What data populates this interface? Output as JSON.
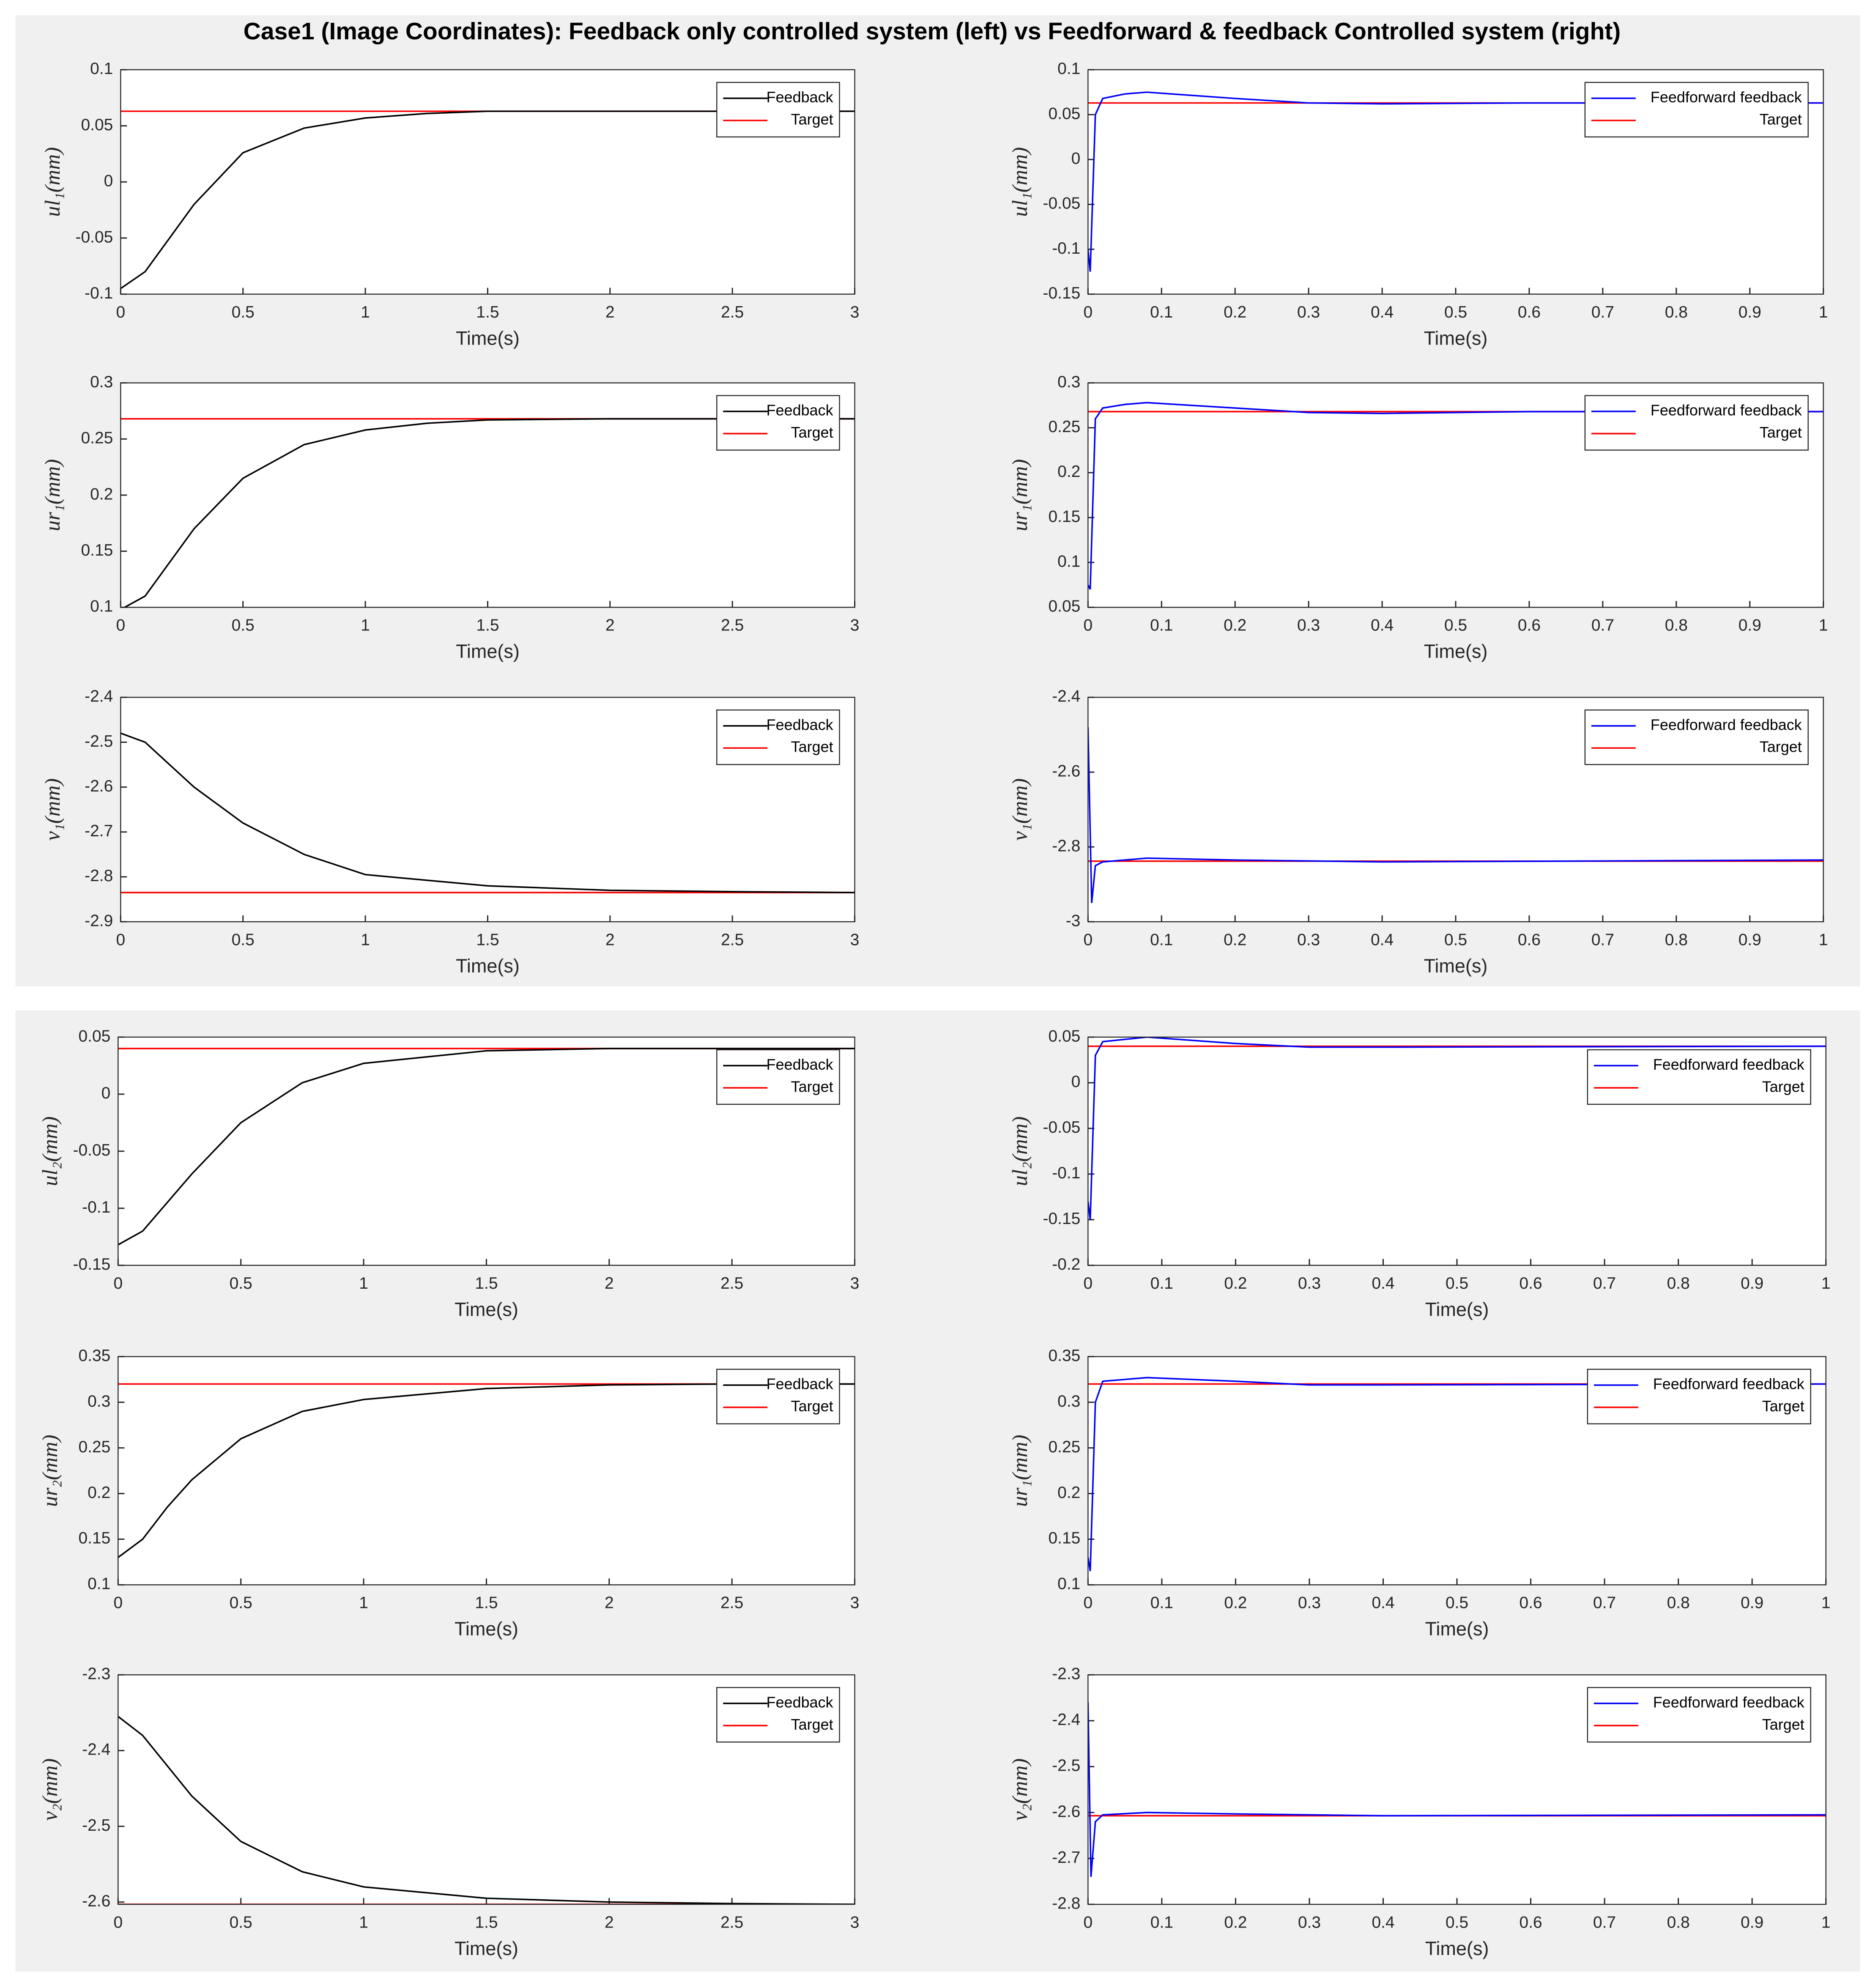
{
  "title": "Case1 (Image Coordinates): Feedback only controlled system (left) vs Feedforward & feedback Controlled system (right)",
  "chart_data": [
    {
      "type": "line",
      "ylabel": "ul₁(mm)",
      "xlabel": "Time(s)",
      "legend": "upper right",
      "xlim": [
        0,
        3
      ],
      "xticks": [
        0,
        0.5,
        1,
        1.5,
        2,
        2.5,
        3
      ],
      "ylim": [
        -0.1,
        0.1
      ],
      "yticks": [
        -0.1,
        -0.05,
        0,
        0.05,
        0.1
      ],
      "x": [
        0,
        0.1,
        0.2,
        0.3,
        0.5,
        0.75,
        1,
        1.25,
        1.5,
        2,
        2.5,
        3
      ],
      "series": [
        {
          "name": "Feedback",
          "color": "#000000",
          "values": [
            -0.095,
            -0.08,
            -0.05,
            -0.02,
            0.026,
            0.048,
            0.057,
            0.061,
            0.063,
            0.063,
            0.063,
            0.063
          ]
        },
        {
          "name": "Target",
          "color": "#ff0000",
          "values": [
            0.063,
            0.063,
            0.063,
            0.063,
            0.063,
            0.063,
            0.063,
            0.063,
            0.063,
            0.063,
            0.063,
            0.063
          ]
        }
      ]
    },
    {
      "type": "line",
      "ylabel": "ul₁(mm)",
      "xlabel": "Time(s)",
      "legend": "upper right",
      "xlim": [
        0,
        1
      ],
      "xticks": [
        0,
        0.1,
        0.2,
        0.3,
        0.4,
        0.5,
        0.6,
        0.7,
        0.8,
        0.9,
        1
      ],
      "ylim": [
        -0.15,
        0.1
      ],
      "yticks": [
        -0.15,
        -0.1,
        -0.05,
        0,
        0.05,
        0.1
      ],
      "x": [
        0,
        0.003,
        0.01,
        0.02,
        0.05,
        0.08,
        0.2,
        0.3,
        0.4,
        0.6,
        1
      ],
      "series": [
        {
          "name": "Feedforward feedback",
          "color": "#0000ff",
          "values": [
            -0.1,
            -0.125,
            0.05,
            0.068,
            0.073,
            0.075,
            0.068,
            0.063,
            0.062,
            0.063,
            0.063
          ]
        },
        {
          "name": "Target",
          "color": "#ff0000",
          "values": [
            0.063,
            0.063,
            0.063,
            0.063,
            0.063,
            0.063,
            0.063,
            0.063,
            0.063,
            0.063,
            0.063
          ]
        }
      ]
    },
    {
      "type": "line",
      "ylabel": "ur₁(mm)",
      "xlabel": "Time(s)",
      "legend": "upper right",
      "xlim": [
        0,
        3
      ],
      "xticks": [
        0,
        0.5,
        1,
        1.5,
        2,
        2.5,
        3
      ],
      "ylim": [
        0.1,
        0.3
      ],
      "yticks": [
        0.1,
        0.15,
        0.2,
        0.25,
        0.3
      ],
      "x": [
        0,
        0.1,
        0.2,
        0.3,
        0.5,
        0.75,
        1,
        1.25,
        1.5,
        2,
        2.5,
        3
      ],
      "series": [
        {
          "name": "Feedback",
          "color": "#000000",
          "values": [
            0.098,
            0.11,
            0.14,
            0.17,
            0.215,
            0.245,
            0.258,
            0.264,
            0.267,
            0.268,
            0.268,
            0.268
          ]
        },
        {
          "name": "Target",
          "color": "#ff0000",
          "values": [
            0.268,
            0.268,
            0.268,
            0.268,
            0.268,
            0.268,
            0.268,
            0.268,
            0.268,
            0.268,
            0.268,
            0.268
          ]
        }
      ]
    },
    {
      "type": "line",
      "ylabel": "ur₁(mm)",
      "xlabel": "Time(s)",
      "legend": "upper right",
      "xlim": [
        0,
        1
      ],
      "xticks": [
        0,
        0.1,
        0.2,
        0.3,
        0.4,
        0.5,
        0.6,
        0.7,
        0.8,
        0.9,
        1
      ],
      "ylim": [
        0.05,
        0.3
      ],
      "yticks": [
        0.05,
        0.1,
        0.15,
        0.2,
        0.25,
        0.3
      ],
      "x": [
        0,
        0.003,
        0.01,
        0.02,
        0.05,
        0.08,
        0.2,
        0.3,
        0.4,
        0.6,
        1
      ],
      "series": [
        {
          "name": "Feedforward feedback",
          "color": "#0000ff",
          "values": [
            0.075,
            0.07,
            0.26,
            0.272,
            0.276,
            0.278,
            0.272,
            0.267,
            0.266,
            0.268,
            0.268
          ]
        },
        {
          "name": "Target",
          "color": "#ff0000",
          "values": [
            0.268,
            0.268,
            0.268,
            0.268,
            0.268,
            0.268,
            0.268,
            0.268,
            0.268,
            0.268,
            0.268
          ]
        }
      ]
    },
    {
      "type": "line",
      "ylabel": "v₁(mm)",
      "xlabel": "Time(s)",
      "legend": "upper right",
      "xlim": [
        0,
        3
      ],
      "xticks": [
        0,
        0.5,
        1,
        1.5,
        2,
        2.5,
        3
      ],
      "ylim": [
        -2.9,
        -2.4
      ],
      "yticks": [
        -2.9,
        -2.8,
        -2.7,
        -2.6,
        -2.5,
        -2.4
      ],
      "x": [
        0,
        0.1,
        0.2,
        0.3,
        0.5,
        0.75,
        1,
        1.5,
        2,
        2.5,
        3
      ],
      "series": [
        {
          "name": "Feedback",
          "color": "#000000",
          "values": [
            -2.48,
            -2.5,
            -2.55,
            -2.6,
            -2.68,
            -2.75,
            -2.795,
            -2.82,
            -2.83,
            -2.833,
            -2.835
          ]
        },
        {
          "name": "Target",
          "color": "#ff0000",
          "values": [
            -2.835,
            -2.835,
            -2.835,
            -2.835,
            -2.835,
            -2.835,
            -2.835,
            -2.835,
            -2.835,
            -2.835,
            -2.835
          ]
        }
      ]
    },
    {
      "type": "line",
      "ylabel": "v₁(mm)",
      "xlabel": "Time(s)",
      "legend": "upper right",
      "xlim": [
        0,
        1
      ],
      "xticks": [
        0,
        0.1,
        0.2,
        0.3,
        0.4,
        0.5,
        0.6,
        0.7,
        0.8,
        0.9,
        1
      ],
      "ylim": [
        -3,
        -2.4
      ],
      "yticks": [
        -3,
        -2.8,
        -2.6,
        -2.4
      ],
      "x": [
        0,
        0.005,
        0.01,
        0.02,
        0.08,
        0.2,
        0.4,
        1
      ],
      "series": [
        {
          "name": "Feedforward feedback",
          "color": "#0000ff",
          "values": [
            -2.48,
            -2.95,
            -2.85,
            -2.84,
            -2.83,
            -2.835,
            -2.84,
            -2.835
          ]
        },
        {
          "name": "Target",
          "color": "#ff0000",
          "values": [
            -2.838,
            -2.838,
            -2.838,
            -2.838,
            -2.838,
            -2.838,
            -2.838,
            -2.838
          ]
        }
      ]
    },
    {
      "type": "line",
      "ylabel": "ul₂(mm)",
      "xlabel": "Time(s)",
      "legend": "upper right",
      "xlim": [
        0,
        3
      ],
      "xticks": [
        0,
        0.5,
        1,
        1.5,
        2,
        2.5,
        3
      ],
      "ylim": [
        -0.15,
        0.05
      ],
      "yticks": [
        -0.15,
        -0.1,
        -0.05,
        0,
        0.05
      ],
      "x": [
        0,
        0.1,
        0.2,
        0.3,
        0.5,
        0.75,
        1,
        1.5,
        2,
        2.5,
        3
      ],
      "series": [
        {
          "name": "Feedback",
          "color": "#000000",
          "values": [
            -0.132,
            -0.12,
            -0.095,
            -0.07,
            -0.025,
            0.01,
            0.027,
            0.038,
            0.04,
            0.04,
            0.04
          ]
        },
        {
          "name": "Target",
          "color": "#ff0000",
          "values": [
            0.04,
            0.04,
            0.04,
            0.04,
            0.04,
            0.04,
            0.04,
            0.04,
            0.04,
            0.04,
            0.04
          ]
        }
      ]
    },
    {
      "type": "line",
      "ylabel": "ul₂(mm)",
      "xlabel": "Time(s)",
      "legend": "upper right",
      "xlim": [
        0,
        1
      ],
      "xticks": [
        0,
        0.1,
        0.2,
        0.3,
        0.4,
        0.5,
        0.6,
        0.7,
        0.8,
        0.9,
        1
      ],
      "ylim": [
        -0.2,
        0.05
      ],
      "yticks": [
        -0.2,
        -0.15,
        -0.1,
        -0.05,
        0,
        0.05
      ],
      "x": [
        0,
        0.003,
        0.01,
        0.02,
        0.08,
        0.2,
        0.3,
        0.4,
        1
      ],
      "series": [
        {
          "name": "Feedforward feedback",
          "color": "#0000ff",
          "values": [
            -0.13,
            -0.15,
            0.03,
            0.045,
            0.05,
            0.043,
            0.039,
            0.039,
            0.04
          ]
        },
        {
          "name": "Target",
          "color": "#ff0000",
          "values": [
            0.04,
            0.04,
            0.04,
            0.04,
            0.04,
            0.04,
            0.04,
            0.04,
            0.04
          ]
        }
      ]
    },
    {
      "type": "line",
      "ylabel": "ur₂(mm)",
      "xlabel": "Time(s)",
      "legend": "upper right",
      "xlim": [
        0,
        3
      ],
      "xticks": [
        0,
        0.5,
        1,
        1.5,
        2,
        2.5,
        3
      ],
      "ylim": [
        0.1,
        0.35
      ],
      "yticks": [
        0.1,
        0.15,
        0.2,
        0.25,
        0.3,
        0.35
      ],
      "x": [
        0,
        0.1,
        0.2,
        0.3,
        0.5,
        0.75,
        1,
        1.5,
        2,
        2.5,
        3
      ],
      "series": [
        {
          "name": "Feedback",
          "color": "#000000",
          "values": [
            0.13,
            0.15,
            0.185,
            0.215,
            0.26,
            0.29,
            0.303,
            0.315,
            0.319,
            0.32,
            0.32
          ]
        },
        {
          "name": "Target",
          "color": "#ff0000",
          "values": [
            0.32,
            0.32,
            0.32,
            0.32,
            0.32,
            0.32,
            0.32,
            0.32,
            0.32,
            0.32,
            0.32
          ]
        }
      ]
    },
    {
      "type": "line",
      "ylabel": "ur₁(mm)",
      "xlabel": "Time(s)",
      "legend": "upper right",
      "xlim": [
        0,
        1
      ],
      "xticks": [
        0,
        0.1,
        0.2,
        0.3,
        0.4,
        0.5,
        0.6,
        0.7,
        0.8,
        0.9,
        1
      ],
      "ylim": [
        0.1,
        0.35
      ],
      "yticks": [
        0.1,
        0.15,
        0.2,
        0.25,
        0.3,
        0.35
      ],
      "x": [
        0,
        0.003,
        0.01,
        0.02,
        0.08,
        0.2,
        0.3,
        0.4,
        1
      ],
      "series": [
        {
          "name": "Feedforward feedback",
          "color": "#0000ff",
          "values": [
            0.13,
            0.115,
            0.3,
            0.323,
            0.327,
            0.323,
            0.319,
            0.319,
            0.32
          ]
        },
        {
          "name": "Target",
          "color": "#ff0000",
          "values": [
            0.32,
            0.32,
            0.32,
            0.32,
            0.32,
            0.32,
            0.32,
            0.32,
            0.32
          ]
        }
      ]
    },
    {
      "type": "line",
      "ylabel": "v₂(mm)",
      "xlabel": "Time(s)",
      "legend": "upper right",
      "xlim": [
        0,
        3
      ],
      "xticks": [
        0,
        0.5,
        1,
        1.5,
        2,
        2.5,
        3
      ],
      "ylim": [
        -2.603,
        -2.3
      ],
      "yticks": [
        -2.6,
        -2.5,
        -2.4,
        -2.3
      ],
      "x": [
        0,
        0.1,
        0.2,
        0.3,
        0.5,
        0.75,
        1,
        1.5,
        2,
        2.5,
        3
      ],
      "series": [
        {
          "name": "Feedback",
          "color": "#000000",
          "values": [
            -2.355,
            -2.38,
            -2.42,
            -2.46,
            -2.52,
            -2.56,
            -2.58,
            -2.595,
            -2.6,
            -2.602,
            -2.603
          ]
        },
        {
          "name": "Target",
          "color": "#ff0000",
          "values": [
            -2.603,
            -2.603,
            -2.603,
            -2.603,
            -2.603,
            -2.603,
            -2.603,
            -2.603,
            -2.603,
            -2.603,
            -2.603
          ]
        }
      ]
    },
    {
      "type": "line",
      "ylabel": "v₂(mm)",
      "xlabel": "Time(s)",
      "legend": "upper right",
      "xlim": [
        0,
        1
      ],
      "xticks": [
        0,
        0.1,
        0.2,
        0.3,
        0.4,
        0.5,
        0.6,
        0.7,
        0.8,
        0.9,
        1
      ],
      "ylim": [
        -2.8,
        -2.3
      ],
      "yticks": [
        -2.8,
        -2.7,
        -2.6,
        -2.5,
        -2.4,
        -2.3
      ],
      "x": [
        0,
        0.004,
        0.01,
        0.02,
        0.08,
        0.2,
        0.4,
        1
      ],
      "series": [
        {
          "name": "Feedforward feedback",
          "color": "#0000ff",
          "values": [
            -2.36,
            -2.74,
            -2.62,
            -2.605,
            -2.6,
            -2.603,
            -2.607,
            -2.605
          ]
        },
        {
          "name": "Target",
          "color": "#ff0000",
          "values": [
            -2.607,
            -2.607,
            -2.607,
            -2.607,
            -2.607,
            -2.607,
            -2.607,
            -2.607
          ]
        }
      ]
    }
  ]
}
